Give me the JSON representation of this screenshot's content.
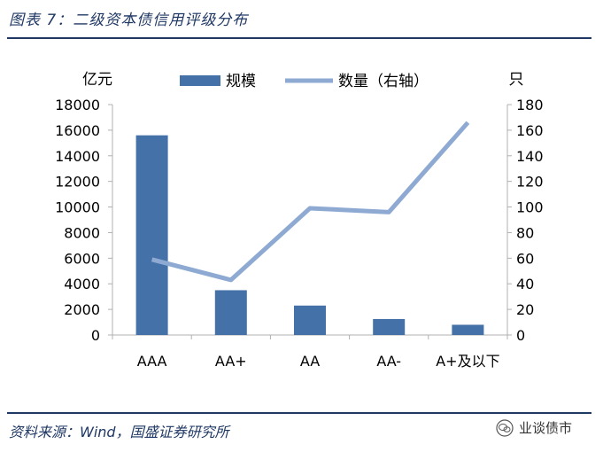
{
  "header": {
    "title": "图表 7：二级资本债信用评级分布"
  },
  "footer": {
    "source": "资料来源：Wind，国盛证券研究所",
    "watermark": "业谈债市"
  },
  "colors": {
    "bar": "#4472a8",
    "line": "#8eaad3",
    "axis": "#b0b0b0",
    "title": "#1f3864"
  },
  "chart_data": {
    "type": "bar",
    "categories": [
      "AAA",
      "AA+",
      "AA",
      "AA-",
      "A+及以下"
    ],
    "series": [
      {
        "name": "规模",
        "type": "bar",
        "axis": "left",
        "values": [
          15600,
          3500,
          2300,
          1250,
          800
        ]
      },
      {
        "name": "数量（右轴）",
        "type": "line",
        "axis": "right",
        "values": [
          59,
          43,
          99,
          96,
          166
        ]
      }
    ],
    "ylabel_left": "亿元",
    "ylabel_right": "只",
    "ylim_left": [
      0,
      18000
    ],
    "ylim_right": [
      0,
      180
    ],
    "yticks_left": [
      "0",
      "2000",
      "4000",
      "6000",
      "8000",
      "10000",
      "12000",
      "14000",
      "16000",
      "18000"
    ],
    "yticks_right": [
      "0",
      "20",
      "40",
      "60",
      "80",
      "100",
      "120",
      "140",
      "160",
      "180"
    ],
    "legend_position": "top",
    "grid": false
  }
}
